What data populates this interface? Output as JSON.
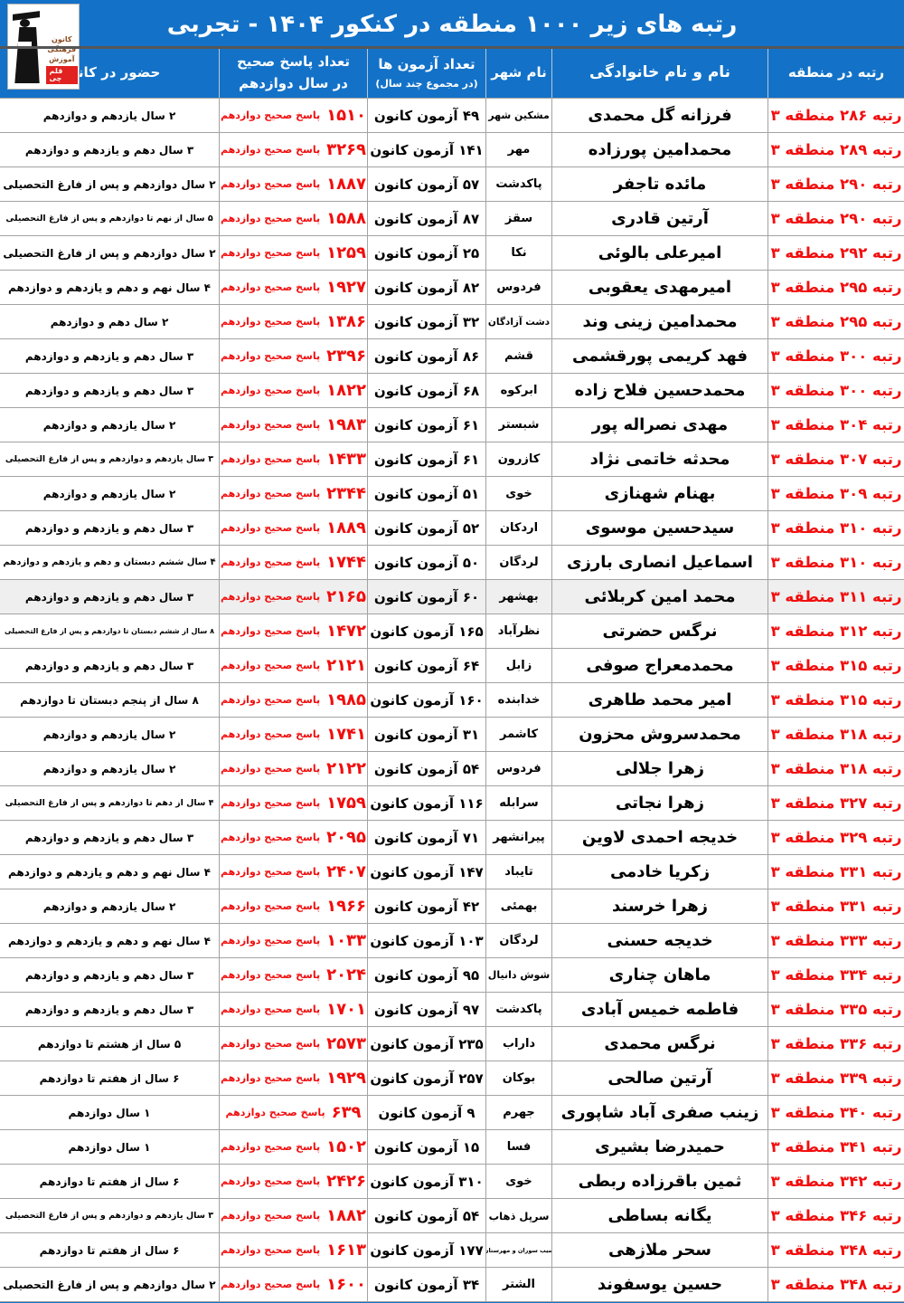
{
  "title": "رتبه های زیر ۱۰۰۰ منطقه در کنکور ۱۴۰۴ - تجربی",
  "colors": {
    "header_blue": "#1372c8",
    "accent_red": "#f20d0d",
    "grid_line": "#a3a3a3"
  },
  "logo": {
    "name_lines": [
      "کانون",
      "فرهنگی",
      "آموزش"
    ],
    "banner": "قلم چی"
  },
  "header": {
    "rank": "رتبه در منطقه",
    "name": "نام و نام خانوادگی",
    "city": "نام شهر",
    "exams_line1": "تعداد آزمون ها",
    "exams_line2": "(در مجموع چند سال)",
    "correct_line1": "تعداد پاسخ صحیح",
    "correct_line2": "در سال دوازدهم",
    "kanoon": "حضور در کانون"
  },
  "labels": {
    "correct_suffix": "پاسخ صحیح دوازدهم"
  },
  "rows": [
    {
      "rank": "رتبه ۲۸۶ منطقه ۳",
      "name": "فرزانه گل محمدی",
      "city": "مشکین شهر",
      "exams": "۴۹ آزمون کانون",
      "correct": "۱۵۱۰",
      "kanoon": "۲ سال یازدهم و دوازدهم"
    },
    {
      "rank": "رتبه ۲۸۹ منطقه ۳",
      "name": "محمدامین پورزاده",
      "city": "مهر",
      "exams": "۱۴۱ آزمون کانون",
      "correct": "۳۲۶۹",
      "kanoon": "۳ سال دهم و یازدهم و دوازدهم"
    },
    {
      "rank": "رتبه ۲۹۰ منطقه ۳",
      "name": "مائده تاجفر",
      "city": "پاکدشت",
      "exams": "۵۷ آزمون کانون",
      "correct": "۱۸۸۷",
      "kanoon": "۲ سال دوازدهم و پس از فارغ التحصیلی"
    },
    {
      "rank": "رتبه ۲۹۰ منطقه ۳",
      "name": "آرتین قادری",
      "city": "سقز",
      "exams": "۸۷ آزمون کانون",
      "correct": "۱۵۸۸",
      "kanoon": "۵ سال از نهم تا دوازدهم و پس از فارغ التحصیلی"
    },
    {
      "rank": "رتبه ۲۹۲ منطقه ۳",
      "name": "امیرعلی بالوئی",
      "city": "نکا",
      "exams": "۲۵ آزمون کانون",
      "correct": "۱۲۵۹",
      "kanoon": "۲ سال دوازدهم و پس از فارغ التحصیلی"
    },
    {
      "rank": "رتبه ۲۹۵ منطقه ۳",
      "name": "امیرمهدی یعقوبی",
      "city": "فردوس",
      "exams": "۸۲ آزمون کانون",
      "correct": "۱۹۲۷",
      "kanoon": "۴ سال نهم و دهم و یازدهم و دوازدهم"
    },
    {
      "rank": "رتبه ۲۹۵ منطقه ۳",
      "name": "محمدامین زینی وند",
      "city": "دشت آزادگان",
      "exams": "۳۲ آزمون کانون",
      "correct": "۱۳۸۶",
      "kanoon": "۲ سال دهم و دوازدهم"
    },
    {
      "rank": "رتبه ۳۰۰ منطقه ۳",
      "name": "فهد کریمی پورقشمی",
      "city": "قشم",
      "exams": "۸۶ آزمون کانون",
      "correct": "۲۳۹۶",
      "kanoon": "۳ سال دهم و یازدهم و دوازدهم"
    },
    {
      "rank": "رتبه ۳۰۰ منطقه ۳",
      "name": "محمدحسین فلاح زاده",
      "city": "ابرکوه",
      "exams": "۶۸ آزمون کانون",
      "correct": "۱۸۲۲",
      "kanoon": "۳ سال دهم و یازدهم و دوازدهم"
    },
    {
      "rank": "رتبه ۳۰۴ منطقه ۳",
      "name": "مهدی نصراله پور",
      "city": "شبستر",
      "exams": "۶۱ آزمون کانون",
      "correct": "۱۹۸۳",
      "kanoon": "۲ سال یازدهم و دوازدهم"
    },
    {
      "rank": "رتبه ۳۰۷ منطقه ۳",
      "name": "محدثه خاتمی نژاد",
      "city": "کازرون",
      "exams": "۶۱ آزمون کانون",
      "correct": "۱۴۳۳",
      "kanoon": "۳ سال یازدهم و دوازدهم و پس از فارغ التحصیلی"
    },
    {
      "rank": "رتبه ۳۰۹ منطقه ۳",
      "name": "بهنام شهنازی",
      "city": "خوی",
      "exams": "۵۱ آزمون کانون",
      "correct": "۲۳۴۴",
      "kanoon": "۲ سال یازدهم و دوازدهم"
    },
    {
      "rank": "رتبه ۳۱۰ منطقه ۳",
      "name": "سیدحسین موسوی",
      "city": "اردکان",
      "exams": "۵۲ آزمون کانون",
      "correct": "۱۸۸۹",
      "kanoon": "۳ سال دهم و یازدهم و دوازدهم"
    },
    {
      "rank": "رتبه ۳۱۰ منطقه ۳",
      "name": "اسماعیل انصاری بارزی",
      "city": "لردگان",
      "exams": "۵۰ آزمون کانون",
      "correct": "۱۷۴۴",
      "kanoon": "۴ سال ششم دبستان و دهم و یازدهم و دوازدهم"
    },
    {
      "rank": "رتبه ۳۱۱ منطقه ۳",
      "name": "محمد امین کربلائی",
      "city": "بهشهر",
      "exams": "۶۰ آزمون کانون",
      "correct": "۲۱۶۵",
      "kanoon": "۳ سال دهم و یازدهم و دوازدهم",
      "shaded": true
    },
    {
      "rank": "رتبه ۳۱۲ منطقه ۳",
      "name": "نرگس حضرتی",
      "city": "نظرآباد",
      "exams": "۱۶۵ آزمون کانون",
      "correct": "۱۴۷۲",
      "kanoon": "۸ سال از ششم دبستان تا دوازدهم و پس از فارغ التحصیلی"
    },
    {
      "rank": "رتبه ۳۱۵ منطقه ۳",
      "name": "محمدمعراج صوفی",
      "city": "زابل",
      "exams": "۶۴ آزمون کانون",
      "correct": "۲۱۲۱",
      "kanoon": "۳ سال دهم و یازدهم و دوازدهم"
    },
    {
      "rank": "رتبه ۳۱۵ منطقه ۳",
      "name": "امیر محمد طاهری",
      "city": "خدابنده",
      "exams": "۱۶۰ آزمون کانون",
      "correct": "۱۹۸۵",
      "kanoon": "۸ سال از پنجم دبستان تا دوازدهم"
    },
    {
      "rank": "رتبه ۳۱۸ منطقه ۳",
      "name": "محمدسروش محزون",
      "city": "کاشمر",
      "exams": "۳۱ آزمون کانون",
      "correct": "۱۷۴۱",
      "kanoon": "۲ سال یازدهم و دوازدهم"
    },
    {
      "rank": "رتبه ۳۱۸ منطقه ۳",
      "name": "زهرا جلالی",
      "city": "فردوس",
      "exams": "۵۴ آزمون کانون",
      "correct": "۲۱۲۲",
      "kanoon": "۲ سال یازدهم و دوازدهم"
    },
    {
      "rank": "رتبه ۳۲۷ منطقه ۳",
      "name": "زهرا نجاتی",
      "city": "سرابله",
      "exams": "۱۱۶ آزمون کانون",
      "correct": "۱۷۵۹",
      "kanoon": "۴ سال از دهم تا دوازدهم و پس از فارغ التحصیلی"
    },
    {
      "rank": "رتبه ۳۲۹ منطقه ۳",
      "name": "خدیجه احمدی لاوین",
      "city": "پیرانشهر",
      "exams": "۷۱ آزمون کانون",
      "correct": "۲۰۹۵",
      "kanoon": "۳ سال دهم و یازدهم و دوازدهم"
    },
    {
      "rank": "رتبه ۳۳۱ منطقه ۳",
      "name": "زکریا خادمی",
      "city": "تایباد",
      "exams": "۱۴۷ آزمون کانون",
      "correct": "۲۴۰۷",
      "kanoon": "۴ سال نهم و دهم و یازدهم و دوازدهم"
    },
    {
      "rank": "رتبه ۳۳۱ منطقه ۳",
      "name": "زهرا خرسند",
      "city": "بهمئی",
      "exams": "۴۲ آزمون کانون",
      "correct": "۱۹۶۶",
      "kanoon": "۲ سال یازدهم و دوازدهم"
    },
    {
      "rank": "رتبه ۳۳۳ منطقه ۳",
      "name": "خدیجه حسنی",
      "city": "لردگان",
      "exams": "۱۰۳ آزمون کانون",
      "correct": "۱۰۳۳",
      "kanoon": "۴ سال نهم و دهم و یازدهم و دوازدهم"
    },
    {
      "rank": "رتبه ۳۳۴ منطقه ۳",
      "name": "ماهان چناری",
      "city": "شوش دانیال",
      "exams": "۹۵ آزمون کانون",
      "correct": "۲۰۲۴",
      "kanoon": "۳ سال دهم و یازدهم و دوازدهم"
    },
    {
      "rank": "رتبه ۳۳۵ منطقه ۳",
      "name": "فاطمه خمیس آبادی",
      "city": "پاکدشت",
      "exams": "۹۷ آزمون کانون",
      "correct": "۱۷۰۱",
      "kanoon": "۳ سال دهم و یازدهم و دوازدهم"
    },
    {
      "rank": "رتبه ۳۳۶ منطقه ۳",
      "name": "نرگس محمدی",
      "city": "داراب",
      "exams": "۲۳۵ آزمون کانون",
      "correct": "۲۵۷۳",
      "kanoon": "۵ سال از هشتم تا دوازدهم"
    },
    {
      "rank": "رتبه ۳۳۹ منطقه ۳",
      "name": "آرتین صالحی",
      "city": "بوکان",
      "exams": "۲۵۷ آزمون کانون",
      "correct": "۱۹۲۹",
      "kanoon": "۶ سال از هفتم تا دوازدهم"
    },
    {
      "rank": "رتبه ۳۴۰ منطقه ۳",
      "name": "زینب صفری آباد شاپوری",
      "city": "جهرم",
      "exams": "۹ آزمون کانون",
      "correct": "۶۳۹",
      "kanoon": "۱ سال دوازدهم"
    },
    {
      "rank": "رتبه ۳۴۱ منطقه ۳",
      "name": "حمیدرضا بشیری",
      "city": "فسا",
      "exams": "۱۵ آزمون کانون",
      "correct": "۱۵۰۲",
      "kanoon": "۱ سال دوازدهم"
    },
    {
      "rank": "رتبه ۳۴۲ منطقه ۳",
      "name": "ثمین باقرزاده ربطی",
      "city": "خوی",
      "exams": "۳۱۰ آزمون کانون",
      "correct": "۲۴۲۶",
      "kanoon": "۶ سال از هفتم تا دوازدهم"
    },
    {
      "rank": "رتبه ۳۴۶ منطقه ۳",
      "name": "یگانه بساطی",
      "city": "سرپل ذهاب",
      "exams": "۵۴ آزمون کانون",
      "correct": "۱۸۸۲",
      "kanoon": "۳ سال یازدهم و دوازدهم و پس از فارغ التحصیلی"
    },
    {
      "rank": "رتبه ۳۴۸ منطقه ۳",
      "name": "سحر ملازهی",
      "city": "سیب سوران و مهرستان",
      "exams": "۱۷۷ آزمون کانون",
      "correct": "۱۶۱۳",
      "kanoon": "۶ سال از هفتم تا دوازدهم"
    },
    {
      "rank": "رتبه ۳۴۸ منطقه ۳",
      "name": "حسین یوسفوند",
      "city": "الشتر",
      "exams": "۳۴ آزمون کانون",
      "correct": "۱۶۰۰",
      "kanoon": "۲ سال دوازدهم و پس از فارغ التحصیلی"
    }
  ]
}
